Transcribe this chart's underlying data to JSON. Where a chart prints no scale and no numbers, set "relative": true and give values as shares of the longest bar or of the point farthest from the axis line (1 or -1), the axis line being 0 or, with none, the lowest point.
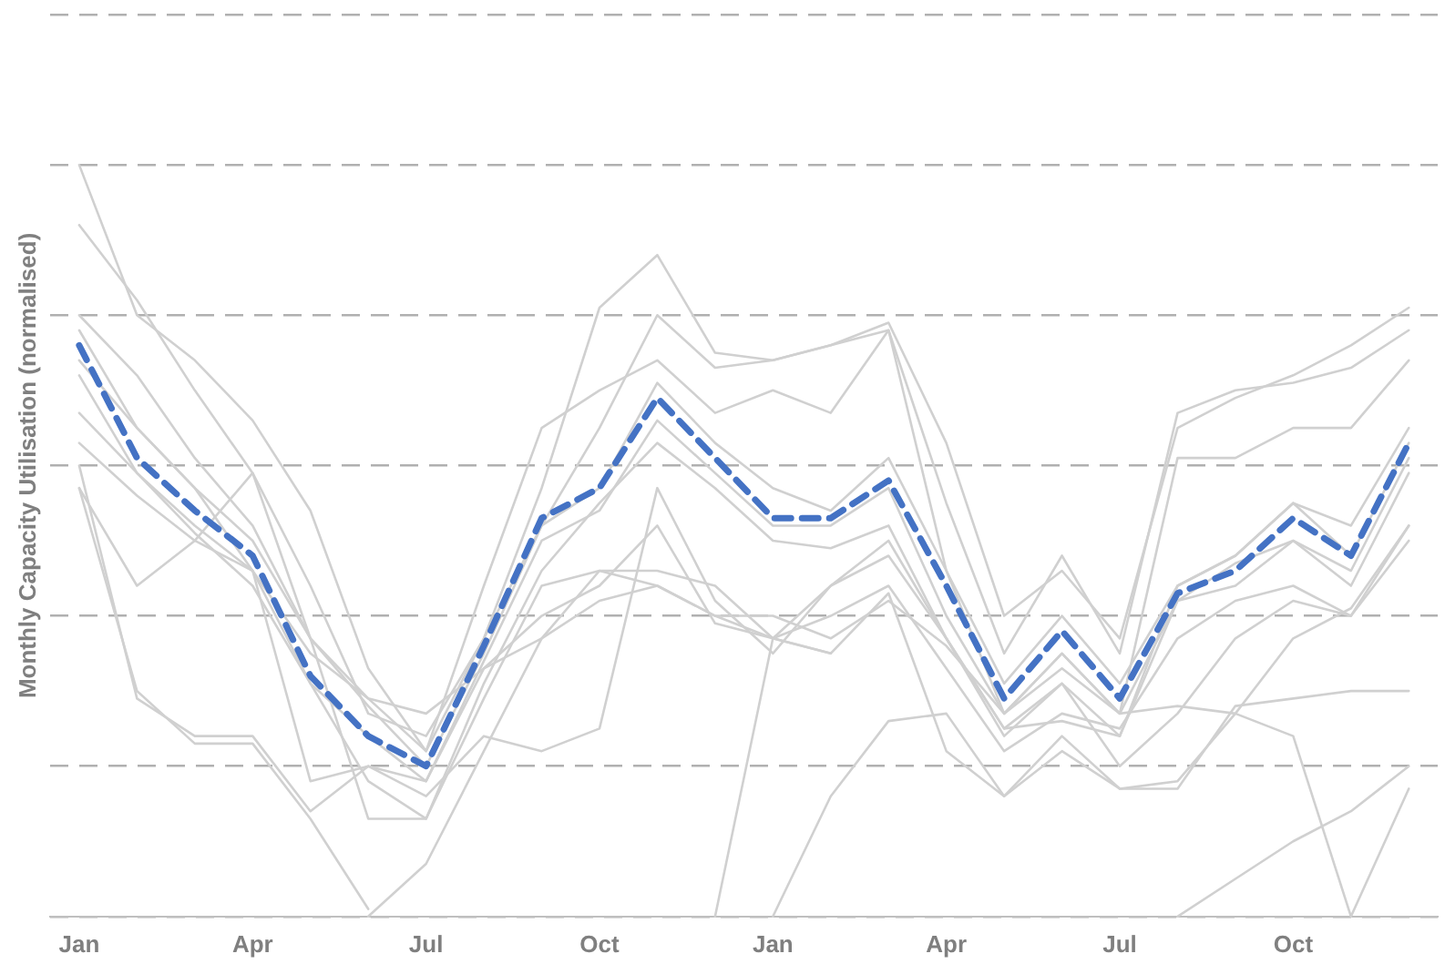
{
  "chart_data": {
    "type": "line",
    "relative": true,
    "ylabel": "Monthly Capacity Utilisation (normalised)",
    "categories": [
      "Jan",
      null,
      null,
      "Apr",
      null,
      null,
      "Jul",
      null,
      null,
      "Oct",
      null,
      null,
      "Jan",
      null,
      null,
      "Apr",
      null,
      null,
      "Jul",
      null,
      null,
      "Oct",
      null,
      null
    ],
    "grid": "y",
    "legend": false,
    "marker": "none",
    "tick_labels": "x",
    "series": [
      {
        "color": "#d0d0d0",
        "line_style": "solid",
        "values": [
          1.0,
          0.8,
          0.74,
          0.66,
          0.54,
          0.33,
          0.22,
          0.37,
          0.52,
          0.65,
          0.8,
          0.73,
          0.74,
          0.76,
          0.79,
          0.63,
          0.4,
          0.46,
          0.37,
          0.65,
          0.69,
          0.72,
          0.76,
          0.81
        ]
      },
      {
        "color": "#d0d0d0",
        "line_style": "solid",
        "values": [
          0.92,
          0.82,
          0.7,
          0.59,
          0.44,
          0.27,
          0.24,
          0.37,
          0.57,
          0.81,
          0.88,
          0.75,
          0.74,
          0.76,
          0.78,
          0.55,
          0.35,
          0.48,
          0.35,
          0.67,
          0.7,
          0.71,
          0.73,
          0.78
        ]
      },
      {
        "color": "#d0d0d0",
        "line_style": "solid",
        "values": [
          0.8,
          0.72,
          0.61,
          0.52,
          0.37,
          0.29,
          0.22,
          0.44,
          0.65,
          0.7,
          0.74,
          0.67,
          0.7,
          0.67,
          0.78,
          0.46,
          0.27,
          0.35,
          0.27,
          0.61,
          0.61,
          0.65,
          0.65,
          0.74
        ]
      },
      {
        "color": "#d0d0d0",
        "line_style": "solid",
        "values": [
          0.74,
          0.65,
          0.57,
          0.5,
          0.37,
          0.28,
          0.2,
          0.35,
          0.52,
          0.57,
          0.71,
          0.63,
          0.57,
          0.54,
          0.61,
          0.46,
          0.31,
          0.4,
          0.31,
          0.44,
          0.48,
          0.55,
          0.52,
          0.65
        ]
      },
      {
        "color": "#d0d0d0",
        "line_style": "solid",
        "values": [
          0.72,
          0.59,
          0.51,
          0.44,
          0.31,
          0.24,
          0.18,
          0.34,
          0.5,
          0.54,
          0.66,
          0.59,
          0.52,
          0.52,
          0.57,
          0.4,
          0.27,
          0.35,
          0.27,
          0.42,
          0.44,
          0.5,
          0.46,
          0.61
        ]
      },
      {
        "color": "#d0d0d0",
        "line_style": "solid",
        "values": [
          0.78,
          0.65,
          0.57,
          0.46,
          0.31,
          0.18,
          0.13,
          0.31,
          0.46,
          0.55,
          0.63,
          0.57,
          0.5,
          0.49,
          0.52,
          0.37,
          0.25,
          0.31,
          0.24,
          0.42,
          0.47,
          0.5,
          0.44,
          0.59
        ]
      },
      {
        "color": "#d0d0d0",
        "line_style": "solid",
        "values": [
          0.57,
          0.44,
          0.5,
          0.59,
          0.37,
          0.13,
          0.13,
          0.29,
          0.44,
          0.46,
          0.46,
          0.44,
          0.37,
          0.4,
          0.44,
          0.33,
          0.22,
          0.27,
          0.25,
          0.37,
          0.42,
          0.44,
          0.4,
          0.52
        ]
      },
      {
        "color": "#d0d0d0",
        "line_style": "solid",
        "values": [
          0.6,
          0.29,
          0.24,
          0.24,
          0.14,
          0.2,
          0.16,
          0.24,
          0.22,
          0.25,
          0.57,
          0.42,
          0.35,
          0.44,
          0.5,
          0.37,
          0.24,
          0.31,
          0.2,
          0.27,
          0.37,
          0.42,
          0.4,
          0.5
        ]
      },
      {
        "color": "#d0d0d0",
        "line_style": "solid",
        "values": [
          0.63,
          0.56,
          0.5,
          0.46,
          0.18,
          0.2,
          0.18,
          0.33,
          0.4,
          0.44,
          0.52,
          0.39,
          0.37,
          0.35,
          0.43,
          0.22,
          0.16,
          0.24,
          0.17,
          0.17,
          0.28,
          0.29,
          0.3,
          0.3
        ]
      },
      {
        "color": "#d0d0d0",
        "line_style": "solid",
        "values": [
          null,
          null,
          null,
          null,
          null,
          null,
          null,
          null,
          null,
          null,
          null,
          0.0,
          0.37,
          0.44,
          0.48,
          0.37,
          0.25,
          0.26,
          0.24,
          0.44,
          0.48,
          0.55,
          0.48,
          0.63
        ]
      },
      {
        "color": "#d0d0d0",
        "line_style": "solid",
        "values": [
          null,
          null,
          null,
          null,
          null,
          null,
          null,
          null,
          null,
          null,
          null,
          null,
          0.0,
          0.16,
          0.26,
          0.27,
          0.16,
          0.22,
          0.17,
          0.18,
          0.27,
          0.37,
          0.41,
          0.52
        ]
      },
      {
        "color": "#d0d0d0",
        "line_style": "solid",
        "values": [
          null,
          null,
          null,
          null,
          null,
          null,
          null,
          null,
          null,
          null,
          null,
          null,
          null,
          null,
          null,
          null,
          null,
          null,
          null,
          0.0,
          0.05,
          0.1,
          0.14,
          0.2
        ]
      },
      {
        "color": "#d0d0d0",
        "line_style": "solid",
        "values": [
          0.67,
          0.59,
          0.52,
          0.46,
          0.35,
          0.29,
          0.27,
          0.33,
          0.37,
          0.42,
          0.44,
          0.4,
          0.4,
          0.37,
          0.42,
          0.36,
          0.27,
          0.33,
          0.27,
          0.28,
          0.27,
          0.24,
          0.0,
          0.17
        ]
      },
      {
        "color": "#d0d0d0",
        "line_style": "solid",
        "values": [
          0.57,
          0.3,
          0.23,
          0.23,
          0.13,
          0.01,
          null,
          null,
          null,
          null,
          null,
          null,
          null,
          null,
          null,
          null,
          null,
          null,
          null,
          null,
          null,
          null,
          null,
          null
        ]
      },
      {
        "color": "#d0d0d0",
        "line_style": "solid",
        "values": [
          null,
          null,
          null,
          null,
          null,
          0.0,
          0.07,
          0.22,
          0.37,
          0.46,
          0.44,
          0.4,
          0.37,
          0.35,
          null,
          null,
          null,
          null,
          null,
          null,
          null,
          null,
          null,
          null
        ]
      },
      {
        "color": "#4472c4",
        "line_style": "dashed",
        "values": [
          0.76,
          0.61,
          0.54,
          0.48,
          0.32,
          0.24,
          0.2,
          0.36,
          0.53,
          0.57,
          0.69,
          0.61,
          0.53,
          0.53,
          0.58,
          0.44,
          0.29,
          0.38,
          0.29,
          0.43,
          0.46,
          0.53,
          0.48,
          0.63
        ]
      }
    ]
  }
}
